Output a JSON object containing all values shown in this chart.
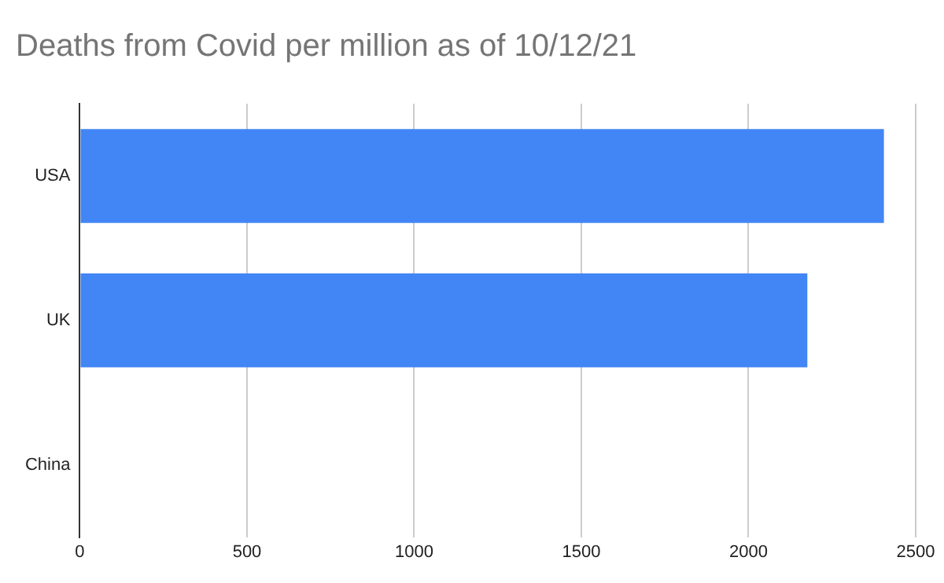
{
  "chart_data": {
    "type": "bar",
    "orientation": "horizontal",
    "title": "Deaths from Covid per million as of 10/12/21",
    "categories": [
      "USA",
      "UK",
      "China"
    ],
    "values": [
      2405,
      2176,
      null
    ],
    "color": "#4285f4",
    "xlim": [
      0,
      2500
    ],
    "xticks": [
      0,
      500,
      1000,
      1500,
      2000,
      2500
    ],
    "grid": "x",
    "legend": false
  }
}
